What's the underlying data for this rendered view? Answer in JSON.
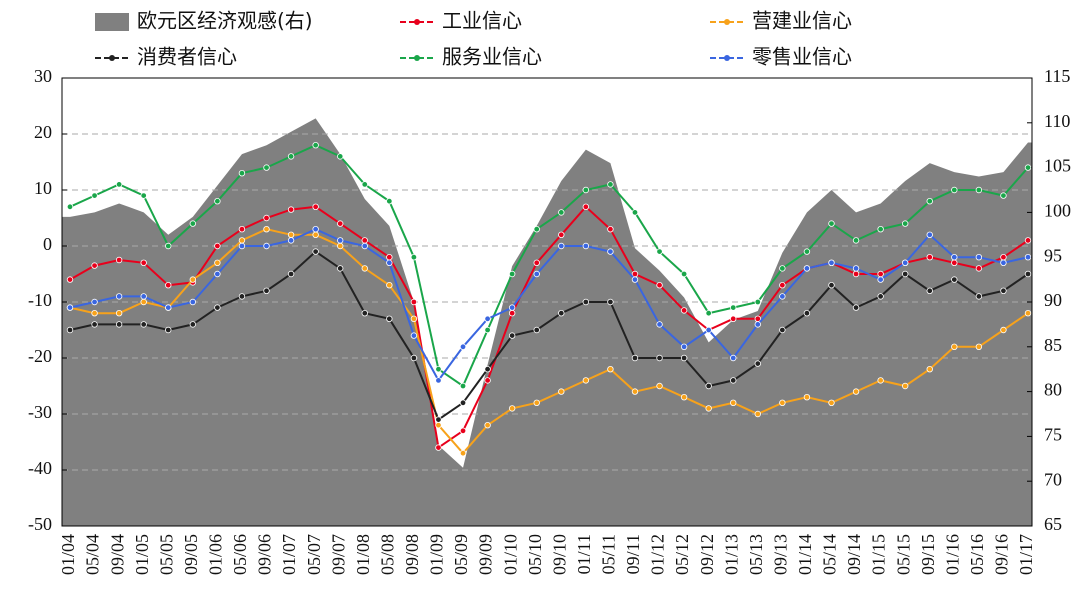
{
  "chart_data": {
    "type": "line",
    "categories": [
      "01/04",
      "05/04",
      "09/04",
      "01/05",
      "05/05",
      "09/05",
      "01/06",
      "05/06",
      "09/06",
      "01/07",
      "05/07",
      "09/07",
      "01/08",
      "05/08",
      "09/08",
      "01/09",
      "05/09",
      "09/09",
      "01/10",
      "05/10",
      "09/10",
      "01/11",
      "05/11",
      "09/11",
      "01/12",
      "05/12",
      "09/12",
      "01/13",
      "05/13",
      "09/13",
      "01/14",
      "05/14",
      "09/14",
      "01/15",
      "05/15",
      "09/15",
      "01/16",
      "05/16",
      "09/16",
      "01/17"
    ],
    "ylim": [
      -50,
      30
    ],
    "yticks": [
      -50,
      -40,
      -30,
      -20,
      -10,
      0,
      10,
      20,
      30
    ],
    "y2lim": [
      65,
      115
    ],
    "y2ticks": [
      65,
      70,
      75,
      80,
      85,
      90,
      95,
      100,
      105,
      110,
      115
    ],
    "grid": true,
    "series": [
      {
        "name": "欧元区经济观感(右)",
        "color": "#808080",
        "kind": "area",
        "axis": "y2",
        "values": [
          99.5,
          100,
          101,
          100,
          97.5,
          99.5,
          103,
          106.5,
          107.5,
          109,
          110.5,
          106.5,
          101.5,
          98.5,
          90,
          74,
          71.5,
          83,
          94,
          98.5,
          103.5,
          107,
          105.5,
          96,
          93.5,
          90.5,
          85.5,
          88,
          89,
          95.5,
          100,
          102.5,
          100,
          101,
          103.5,
          105.5,
          104.5,
          104,
          104.5,
          107.8
        ]
      },
      {
        "name": "工业信心",
        "color": "#e8001c",
        "values": [
          -6,
          -3.5,
          -2.5,
          -3,
          -7,
          -6.5,
          0,
          3,
          5,
          6.5,
          7,
          4,
          1,
          -2,
          -10,
          -36,
          -33,
          -24,
          -12,
          -3,
          2,
          7,
          3,
          -5,
          -7,
          -11.5,
          -15,
          -13,
          -13,
          -7,
          -4,
          -3,
          -5,
          -5,
          -3,
          -2,
          -3,
          -4,
          -2,
          1
        ]
      },
      {
        "name": "营建业信心",
        "color": "#f7a21b",
        "values": [
          -11,
          -12,
          -12,
          -10,
          -11,
          -6,
          -3,
          1,
          3,
          2,
          2,
          0,
          -4,
          -7,
          -13,
          -32,
          -37,
          -32,
          -29,
          -28,
          -26,
          -24,
          -22,
          -26,
          -25,
          -27,
          -29,
          -28,
          -30,
          -28,
          -27,
          -28,
          -26,
          -24,
          -25,
          -22,
          -18,
          -18,
          -15,
          -12
        ]
      },
      {
        "name": "消费者信心",
        "color": "#222222",
        "values": [
          -15,
          -14,
          -14,
          -14,
          -15,
          -14,
          -11,
          -9,
          -8,
          -5,
          -1,
          -4,
          -12,
          -13,
          -20,
          -31,
          -28,
          -22,
          -16,
          -15,
          -12,
          -10,
          -10,
          -20,
          -20,
          -20,
          -25,
          -24,
          -21,
          -15,
          -12,
          -7,
          -11,
          -9,
          -5,
          -8,
          -6,
          -9,
          -8,
          -5
        ]
      },
      {
        "name": "服务业信心",
        "color": "#1aa64a",
        "values": [
          7,
          9,
          11,
          9,
          0,
          4,
          8,
          13,
          14,
          16,
          18,
          16,
          11,
          8,
          -2,
          -22,
          -25,
          -15,
          -5,
          3,
          6,
          10,
          11,
          6,
          -1,
          -5,
          -12,
          -11,
          -10,
          -4,
          -1,
          4,
          1,
          3,
          4,
          8,
          10,
          10,
          9,
          14
        ]
      },
      {
        "name": "零售业信心",
        "color": "#3a66e0",
        "values": [
          -11,
          -10,
          -9,
          -9,
          -11,
          -10,
          -5,
          0,
          0,
          1,
          3,
          1,
          0,
          -3,
          -16,
          -24,
          -18,
          -13,
          -11,
          -5,
          0,
          0,
          -1,
          -6,
          -14,
          -18,
          -15,
          -20,
          -14,
          -9,
          -4,
          -3,
          -4,
          -6,
          -3,
          2,
          -2,
          -2,
          -3,
          -2
        ]
      }
    ]
  }
}
